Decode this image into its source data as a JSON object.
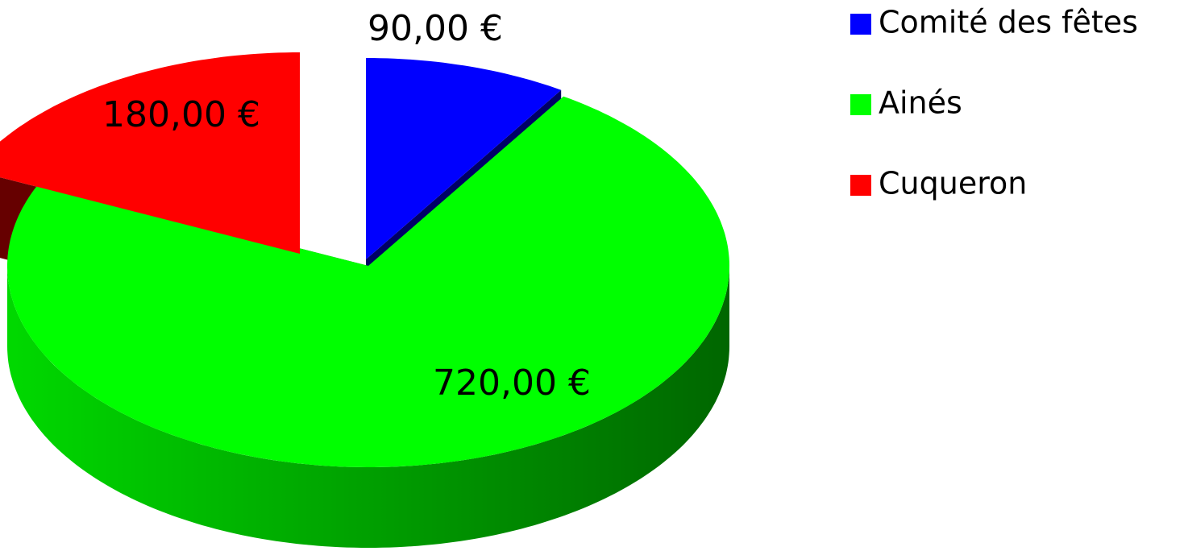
{
  "chart_data": {
    "type": "pie",
    "categories": [
      "Comité des fêtes",
      "Ainés",
      "Cuqueron"
    ],
    "values": [
      90,
      720,
      180
    ],
    "value_labels": [
      "90,00 €",
      "720,00 €",
      "180,00 €"
    ],
    "colors": [
      "#0000ff",
      "#00ff00",
      "#ff0000"
    ],
    "legend": "top-right"
  }
}
